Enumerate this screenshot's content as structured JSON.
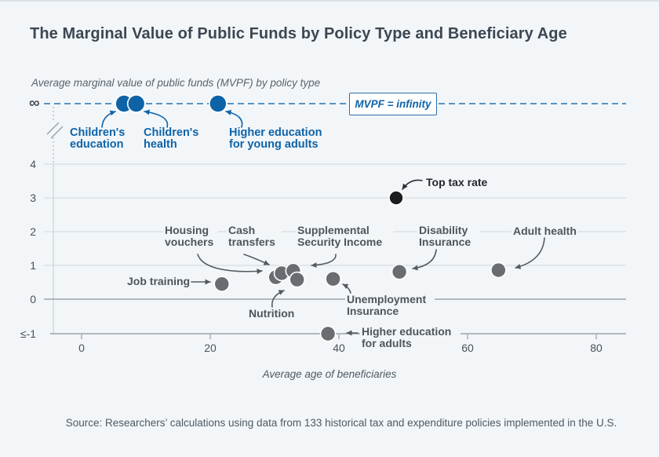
{
  "header": {
    "title": "The Marginal Value of Public Funds by Policy Type and Beneficiary Age"
  },
  "chart": {
    "subtitle": "Average marginal value of public funds (MVPF) by policy type",
    "infinity_symbol": "∞",
    "infinity_badge": "MVPF = infinity",
    "xlabel": "Average age of beneficiaries",
    "y_ticks": [
      "4",
      "3",
      "2",
      "1",
      "0",
      "≤-1"
    ],
    "x_ticks": [
      "0",
      "20",
      "40",
      "60",
      "80"
    ]
  },
  "source": {
    "text": "Source: Researchers’ calculations using data from 133 historical tax and expenditure policies implemented in the U.S."
  },
  "colors": {
    "background": "#f2f6f9",
    "dot_blue": "#0e63a7",
    "dot_gray": "#696d71",
    "dot_black": "#1b1e21",
    "grid_light": "#cfd5da",
    "grid_dark": "#9ea4ab",
    "accent_blue": "#0f63a8"
  },
  "chart_data": {
    "type": "scatter",
    "title": "The Marginal Value of Public Funds by Policy Type and Beneficiary Age",
    "xlabel": "Average age of beneficiaries",
    "ylabel": "Average marginal value of public funds (MVPF) by policy type",
    "x_range": [
      0,
      80
    ],
    "y_tick_values": [
      4,
      3,
      2,
      1,
      0,
      -1
    ],
    "grid": true,
    "notes": "Blue points lie on the dashed MVPF = infinity line; Higher education for adults lies on the ≤-1 baseline",
    "points": [
      {
        "id": "children-education",
        "label": "Children's education",
        "age": 6.6,
        "mvpf": "infinity",
        "group": "blue"
      },
      {
        "id": "children-health",
        "label": "Children's health",
        "age": 8.5,
        "mvpf": "infinity",
        "group": "blue"
      },
      {
        "id": "higher-education-young-adults",
        "label": "Higher education for young adults",
        "age": 21.2,
        "mvpf": "infinity",
        "group": "blue"
      },
      {
        "id": "job-training",
        "label": "Job training",
        "age": 21.8,
        "mvpf": 0.45,
        "group": "gray"
      },
      {
        "id": "housing-vouchers",
        "label": "Housing vouchers",
        "age": 30.2,
        "mvpf": 0.65,
        "group": "gray"
      },
      {
        "id": "cash-transfers",
        "label": "Cash transfers",
        "age": 31.1,
        "mvpf": 0.77,
        "group": "gray"
      },
      {
        "id": "supplemental-security-income",
        "label": "Supplemental Security Income",
        "age": 32.9,
        "mvpf": 0.84,
        "group": "gray"
      },
      {
        "id": "nutrition",
        "label": "Nutrition",
        "age": 33.5,
        "mvpf": 0.58,
        "group": "gray"
      },
      {
        "id": "unemployment-insurance",
        "label": "Unemployment Insurance",
        "age": 39.1,
        "mvpf": 0.6,
        "group": "gray"
      },
      {
        "id": "higher-education-adults",
        "label": "Higher education for adults",
        "age": 38.3,
        "mvpf": "≤-1",
        "group": "gray"
      },
      {
        "id": "top-tax-rate",
        "label": "Top tax rate",
        "age": 48.9,
        "mvpf": 3.0,
        "group": "black"
      },
      {
        "id": "disability-insurance",
        "label": "Disability Insurance",
        "age": 49.4,
        "mvpf": 0.81,
        "group": "gray"
      },
      {
        "id": "adult-health",
        "label": "Adult health",
        "age": 64.8,
        "mvpf": 0.86,
        "group": "gray"
      }
    ]
  }
}
